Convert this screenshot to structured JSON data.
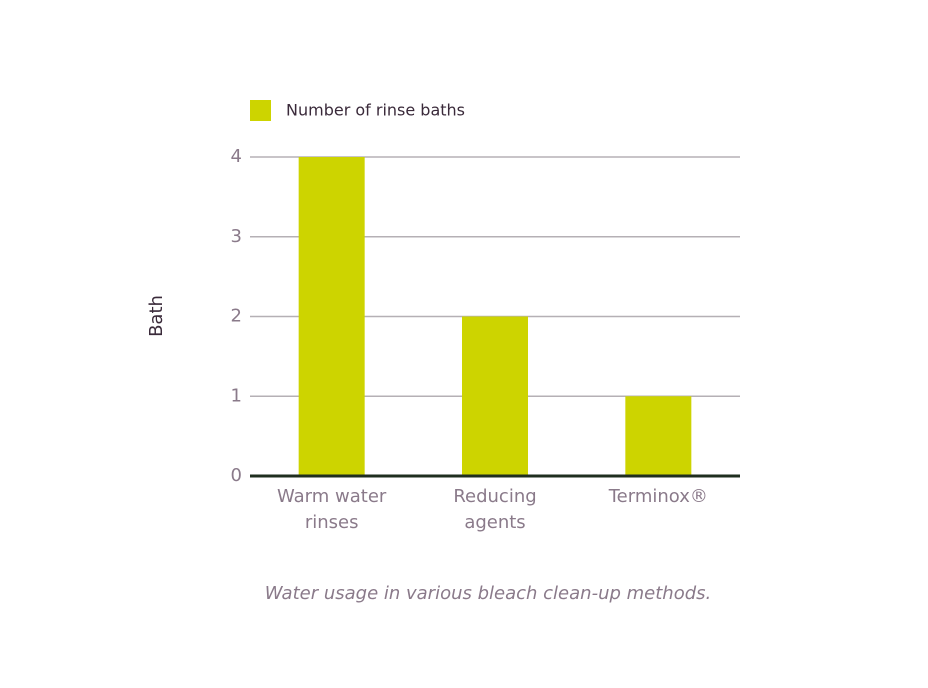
{
  "chart_data": {
    "type": "bar",
    "legend": "Number of rinse baths",
    "y_label": "Bath",
    "caption": "Water usage in various bleach clean-up methods.",
    "categories": [
      "Warm water rinses",
      "Reducing agents",
      "Terminox®"
    ],
    "values": [
      4,
      2,
      1
    ],
    "color": "#cdd400",
    "ylim": [
      0,
      4
    ],
    "yticks": [
      0,
      1,
      2,
      3,
      4
    ],
    "grid": true
  }
}
